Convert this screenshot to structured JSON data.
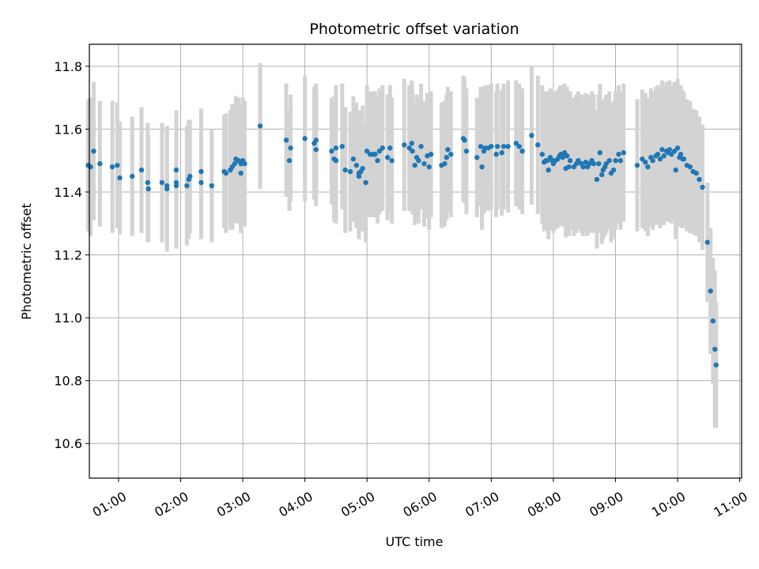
{
  "chart_data": {
    "type": "scatter",
    "title": "Photometric offset variation",
    "xlabel": "UTC time",
    "ylabel": "Photometric offset",
    "xlim": [
      0.53,
      11.03
    ],
    "ylim": [
      10.49,
      11.87
    ],
    "xticks": [
      1,
      2,
      3,
      4,
      5,
      6,
      7,
      8,
      9,
      10,
      11
    ],
    "xtick_labels": [
      "01:00",
      "02:00",
      "03:00",
      "04:00",
      "05:00",
      "06:00",
      "07:00",
      "08:00",
      "09:00",
      "10:00",
      "11:00"
    ],
    "yticks": [
      10.6,
      10.8,
      11.0,
      11.2,
      11.4,
      11.6,
      11.8
    ],
    "ytick_labels": [
      "10.6",
      "10.8",
      "11.0",
      "11.2",
      "11.4",
      "11.6",
      "11.8"
    ],
    "grid": true,
    "marker_color": "#1f77b4",
    "errorbar_color": "#d3d3d3",
    "series": [
      {
        "name": "offset",
        "points": [
          [
            0.51,
            11.485,
            0.21
          ],
          [
            0.55,
            11.48,
            0.22
          ],
          [
            0.6,
            11.53,
            0.22
          ],
          [
            0.7,
            11.49,
            0.2
          ],
          [
            0.9,
            11.48,
            0.21
          ],
          [
            0.98,
            11.485,
            0.2
          ],
          [
            1.02,
            11.445,
            0.18
          ],
          [
            1.22,
            11.45,
            0.19
          ],
          [
            1.37,
            11.47,
            0.2
          ],
          [
            1.47,
            11.43,
            0.19
          ],
          [
            1.48,
            11.41,
            0.17
          ],
          [
            1.7,
            11.43,
            0.19
          ],
          [
            1.78,
            11.41,
            0.2
          ],
          [
            1.78,
            11.42,
            0.18
          ],
          [
            1.93,
            11.47,
            0.19
          ],
          [
            1.93,
            11.43,
            0.18
          ],
          [
            1.93,
            11.42,
            0.2
          ],
          [
            2.1,
            11.42,
            0.19
          ],
          [
            2.13,
            11.44,
            0.19
          ],
          [
            2.15,
            11.45,
            0.18
          ],
          [
            2.33,
            11.465,
            0.2
          ],
          [
            2.33,
            11.43,
            0.18
          ],
          [
            2.5,
            11.42,
            0.18
          ],
          [
            2.7,
            11.465,
            0.18
          ],
          [
            2.73,
            11.46,
            0.19
          ],
          [
            2.8,
            11.47,
            0.19
          ],
          [
            2.83,
            11.48,
            0.2
          ],
          [
            2.87,
            11.49,
            0.19
          ],
          [
            2.89,
            11.505,
            0.2
          ],
          [
            2.93,
            11.5,
            0.2
          ],
          [
            2.97,
            11.49,
            0.19
          ],
          [
            2.97,
            11.46,
            0.19
          ],
          [
            3.0,
            11.5,
            0.2
          ],
          [
            3.03,
            11.49,
            0.2
          ],
          [
            3.28,
            11.61,
            0.2
          ],
          [
            3.7,
            11.565,
            0.18
          ],
          [
            3.75,
            11.5,
            0.16
          ],
          [
            3.77,
            11.54,
            0.17
          ],
          [
            4.0,
            11.57,
            0.2
          ],
          [
            4.15,
            11.555,
            0.18
          ],
          [
            4.18,
            11.535,
            0.18
          ],
          [
            4.18,
            11.565,
            0.18
          ],
          [
            4.43,
            11.53,
            0.17
          ],
          [
            4.47,
            11.505,
            0.2
          ],
          [
            4.5,
            11.54,
            0.2
          ],
          [
            4.5,
            11.5,
            0.2
          ],
          [
            4.6,
            11.545,
            0.2
          ],
          [
            4.65,
            11.47,
            0.2
          ],
          [
            4.73,
            11.465,
            0.19
          ],
          [
            4.78,
            11.505,
            0.2
          ],
          [
            4.83,
            11.485,
            0.2
          ],
          [
            4.87,
            11.46,
            0.2
          ],
          [
            4.87,
            11.45,
            0.2
          ],
          [
            4.9,
            11.465,
            0.19
          ],
          [
            4.93,
            11.475,
            0.2
          ],
          [
            4.98,
            11.43,
            0.19
          ],
          [
            5.0,
            11.53,
            0.21
          ],
          [
            5.05,
            11.52,
            0.2
          ],
          [
            5.1,
            11.52,
            0.2
          ],
          [
            5.13,
            11.52,
            0.2
          ],
          [
            5.17,
            11.5,
            0.2
          ],
          [
            5.2,
            11.53,
            0.2
          ],
          [
            5.25,
            11.54,
            0.2
          ],
          [
            5.33,
            11.51,
            0.2
          ],
          [
            5.37,
            11.54,
            0.2
          ],
          [
            5.4,
            11.5,
            0.2
          ],
          [
            5.6,
            11.55,
            0.21
          ],
          [
            5.68,
            11.54,
            0.2
          ],
          [
            5.72,
            11.555,
            0.2
          ],
          [
            5.73,
            11.53,
            0.2
          ],
          [
            5.77,
            11.485,
            0.19
          ],
          [
            5.8,
            11.51,
            0.2
          ],
          [
            5.83,
            11.5,
            0.2
          ],
          [
            5.87,
            11.545,
            0.2
          ],
          [
            5.92,
            11.49,
            0.2
          ],
          [
            5.97,
            11.515,
            0.2
          ],
          [
            6.0,
            11.48,
            0.2
          ],
          [
            6.03,
            11.52,
            0.2
          ],
          [
            6.2,
            11.485,
            0.2
          ],
          [
            6.25,
            11.49,
            0.2
          ],
          [
            6.28,
            11.51,
            0.2
          ],
          [
            6.3,
            11.535,
            0.2
          ],
          [
            6.35,
            11.52,
            0.2
          ],
          [
            6.55,
            11.57,
            0.2
          ],
          [
            6.57,
            11.565,
            0.2
          ],
          [
            6.6,
            11.53,
            0.2
          ],
          [
            6.77,
            11.51,
            0.19
          ],
          [
            6.83,
            11.545,
            0.19
          ],
          [
            6.85,
            11.48,
            0.2
          ],
          [
            6.88,
            11.53,
            0.2
          ],
          [
            6.9,
            11.54,
            0.2
          ],
          [
            6.95,
            11.54,
            0.2
          ],
          [
            7.0,
            11.545,
            0.2
          ],
          [
            7.08,
            11.52,
            0.2
          ],
          [
            7.1,
            11.545,
            0.2
          ],
          [
            7.17,
            11.525,
            0.2
          ],
          [
            7.2,
            11.545,
            0.2
          ],
          [
            7.27,
            11.545,
            0.21
          ],
          [
            7.4,
            11.555,
            0.2
          ],
          [
            7.45,
            11.545,
            0.2
          ],
          [
            7.5,
            11.53,
            0.2
          ],
          [
            7.65,
            11.58,
            0.22
          ],
          [
            7.75,
            11.55,
            0.22
          ],
          [
            7.82,
            11.52,
            0.22
          ],
          [
            7.85,
            11.495,
            0.22
          ],
          [
            7.88,
            11.5,
            0.22
          ],
          [
            7.9,
            11.5,
            0.22
          ],
          [
            7.92,
            11.47,
            0.22
          ],
          [
            7.95,
            11.51,
            0.22
          ],
          [
            7.98,
            11.5,
            0.22
          ],
          [
            8.0,
            11.49,
            0.22
          ],
          [
            8.03,
            11.5,
            0.22
          ],
          [
            8.07,
            11.505,
            0.22
          ],
          [
            8.1,
            11.515,
            0.22
          ],
          [
            8.12,
            11.52,
            0.22
          ],
          [
            8.15,
            11.51,
            0.22
          ],
          [
            8.18,
            11.525,
            0.22
          ],
          [
            8.2,
            11.475,
            0.22
          ],
          [
            8.22,
            11.515,
            0.22
          ],
          [
            8.25,
            11.48,
            0.22
          ],
          [
            8.27,
            11.5,
            0.22
          ],
          [
            8.33,
            11.48,
            0.22
          ],
          [
            8.37,
            11.49,
            0.22
          ],
          [
            8.4,
            11.5,
            0.22
          ],
          [
            8.45,
            11.49,
            0.22
          ],
          [
            8.48,
            11.48,
            0.22
          ],
          [
            8.52,
            11.495,
            0.22
          ],
          [
            8.55,
            11.48,
            0.22
          ],
          [
            8.58,
            11.49,
            0.22
          ],
          [
            8.62,
            11.5,
            0.22
          ],
          [
            8.65,
            11.49,
            0.22
          ],
          [
            8.7,
            11.44,
            0.22
          ],
          [
            8.73,
            11.49,
            0.22
          ],
          [
            8.75,
            11.525,
            0.22
          ],
          [
            8.78,
            11.455,
            0.22
          ],
          [
            8.8,
            11.47,
            0.22
          ],
          [
            8.83,
            11.48,
            0.22
          ],
          [
            8.85,
            11.49,
            0.22
          ],
          [
            8.9,
            11.5,
            0.22
          ],
          [
            8.93,
            11.46,
            0.22
          ],
          [
            8.97,
            11.47,
            0.22
          ],
          [
            9.0,
            11.5,
            0.22
          ],
          [
            9.05,
            11.52,
            0.22
          ],
          [
            9.08,
            11.5,
            0.22
          ],
          [
            9.13,
            11.525,
            0.22
          ],
          [
            9.35,
            11.485,
            0.21
          ],
          [
            9.43,
            11.505,
            0.22
          ],
          [
            9.48,
            11.495,
            0.22
          ],
          [
            9.52,
            11.48,
            0.22
          ],
          [
            9.57,
            11.51,
            0.22
          ],
          [
            9.6,
            11.5,
            0.22
          ],
          [
            9.65,
            11.515,
            0.22
          ],
          [
            9.68,
            11.52,
            0.22
          ],
          [
            9.72,
            11.505,
            0.22
          ],
          [
            9.75,
            11.535,
            0.22
          ],
          [
            9.78,
            11.515,
            0.22
          ],
          [
            9.82,
            11.53,
            0.22
          ],
          [
            9.85,
            11.525,
            0.22
          ],
          [
            9.87,
            11.535,
            0.22
          ],
          [
            9.9,
            11.52,
            0.22
          ],
          [
            9.95,
            11.53,
            0.22
          ],
          [
            9.97,
            11.47,
            0.22
          ],
          [
            10.0,
            11.54,
            0.22
          ],
          [
            10.03,
            11.51,
            0.22
          ],
          [
            10.05,
            11.52,
            0.22
          ],
          [
            10.08,
            11.505,
            0.22
          ],
          [
            10.1,
            11.505,
            0.21
          ],
          [
            10.15,
            11.485,
            0.21
          ],
          [
            10.2,
            11.48,
            0.21
          ],
          [
            10.25,
            11.465,
            0.2
          ],
          [
            10.3,
            11.46,
            0.2
          ],
          [
            10.35,
            11.44,
            0.2
          ],
          [
            10.4,
            11.415,
            0.2
          ],
          [
            10.48,
            11.24,
            0.19
          ],
          [
            10.53,
            11.085,
            0.2
          ],
          [
            10.57,
            10.99,
            0.2
          ],
          [
            10.6,
            10.9,
            0.25
          ],
          [
            10.62,
            10.85,
            0.2
          ]
        ]
      }
    ]
  }
}
